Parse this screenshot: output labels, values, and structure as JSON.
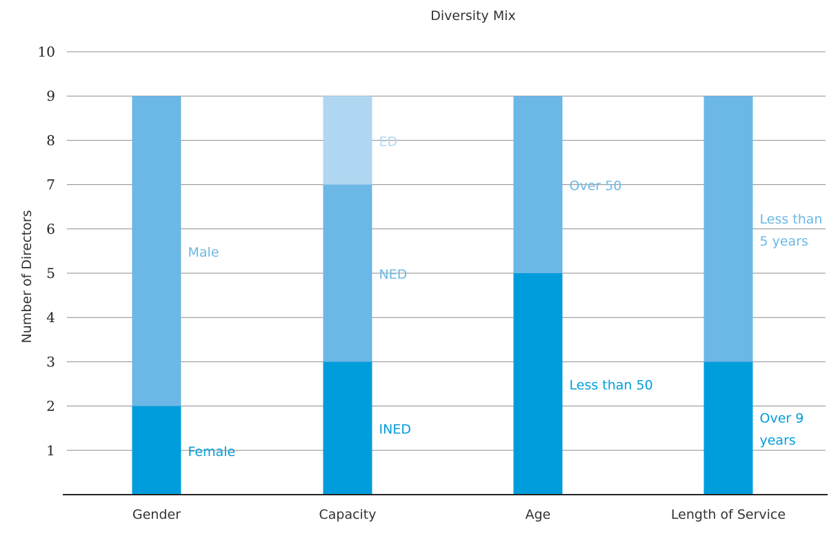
{
  "chart_data": {
    "type": "bar",
    "stacked": true,
    "title": "Diversity Mix",
    "ylabel": "Number of Directors",
    "xlabel": "",
    "ylim": [
      0,
      10
    ],
    "yticks": [
      1,
      2,
      3,
      4,
      5,
      6,
      7,
      8,
      9,
      10
    ],
    "grid": true,
    "categories": [
      "Gender",
      "Capacity",
      "Age",
      "Length of Service"
    ],
    "stacks": [
      {
        "category": "Gender",
        "segments": [
          {
            "label": "Female",
            "value": 2,
            "color": "#009ddc"
          },
          {
            "label": "Male",
            "value": 7,
            "color": "#6bb8e6"
          }
        ]
      },
      {
        "category": "Capacity",
        "segments": [
          {
            "label": "INED",
            "value": 3,
            "color": "#009ddc"
          },
          {
            "label": "NED",
            "value": 4,
            "color": "#6bb8e6"
          },
          {
            "label": "ED",
            "value": 2,
            "color": "#b0d7f2"
          }
        ]
      },
      {
        "category": "Age",
        "segments": [
          {
            "label": "Less than 50",
            "value": 5,
            "color": "#009ddc"
          },
          {
            "label": "Over 50",
            "value": 4,
            "color": "#6bb8e6"
          }
        ]
      },
      {
        "category": "Length of Service",
        "segments": [
          {
            "label": "Over 9 years",
            "lines": [
              "Over 9",
              "years"
            ],
            "value": 3,
            "color": "#009ddc"
          },
          {
            "label": "Less than 5 years",
            "lines": [
              "Less than",
              "5 years"
            ],
            "value": 6,
            "color": "#6bb8e6"
          }
        ]
      }
    ]
  }
}
